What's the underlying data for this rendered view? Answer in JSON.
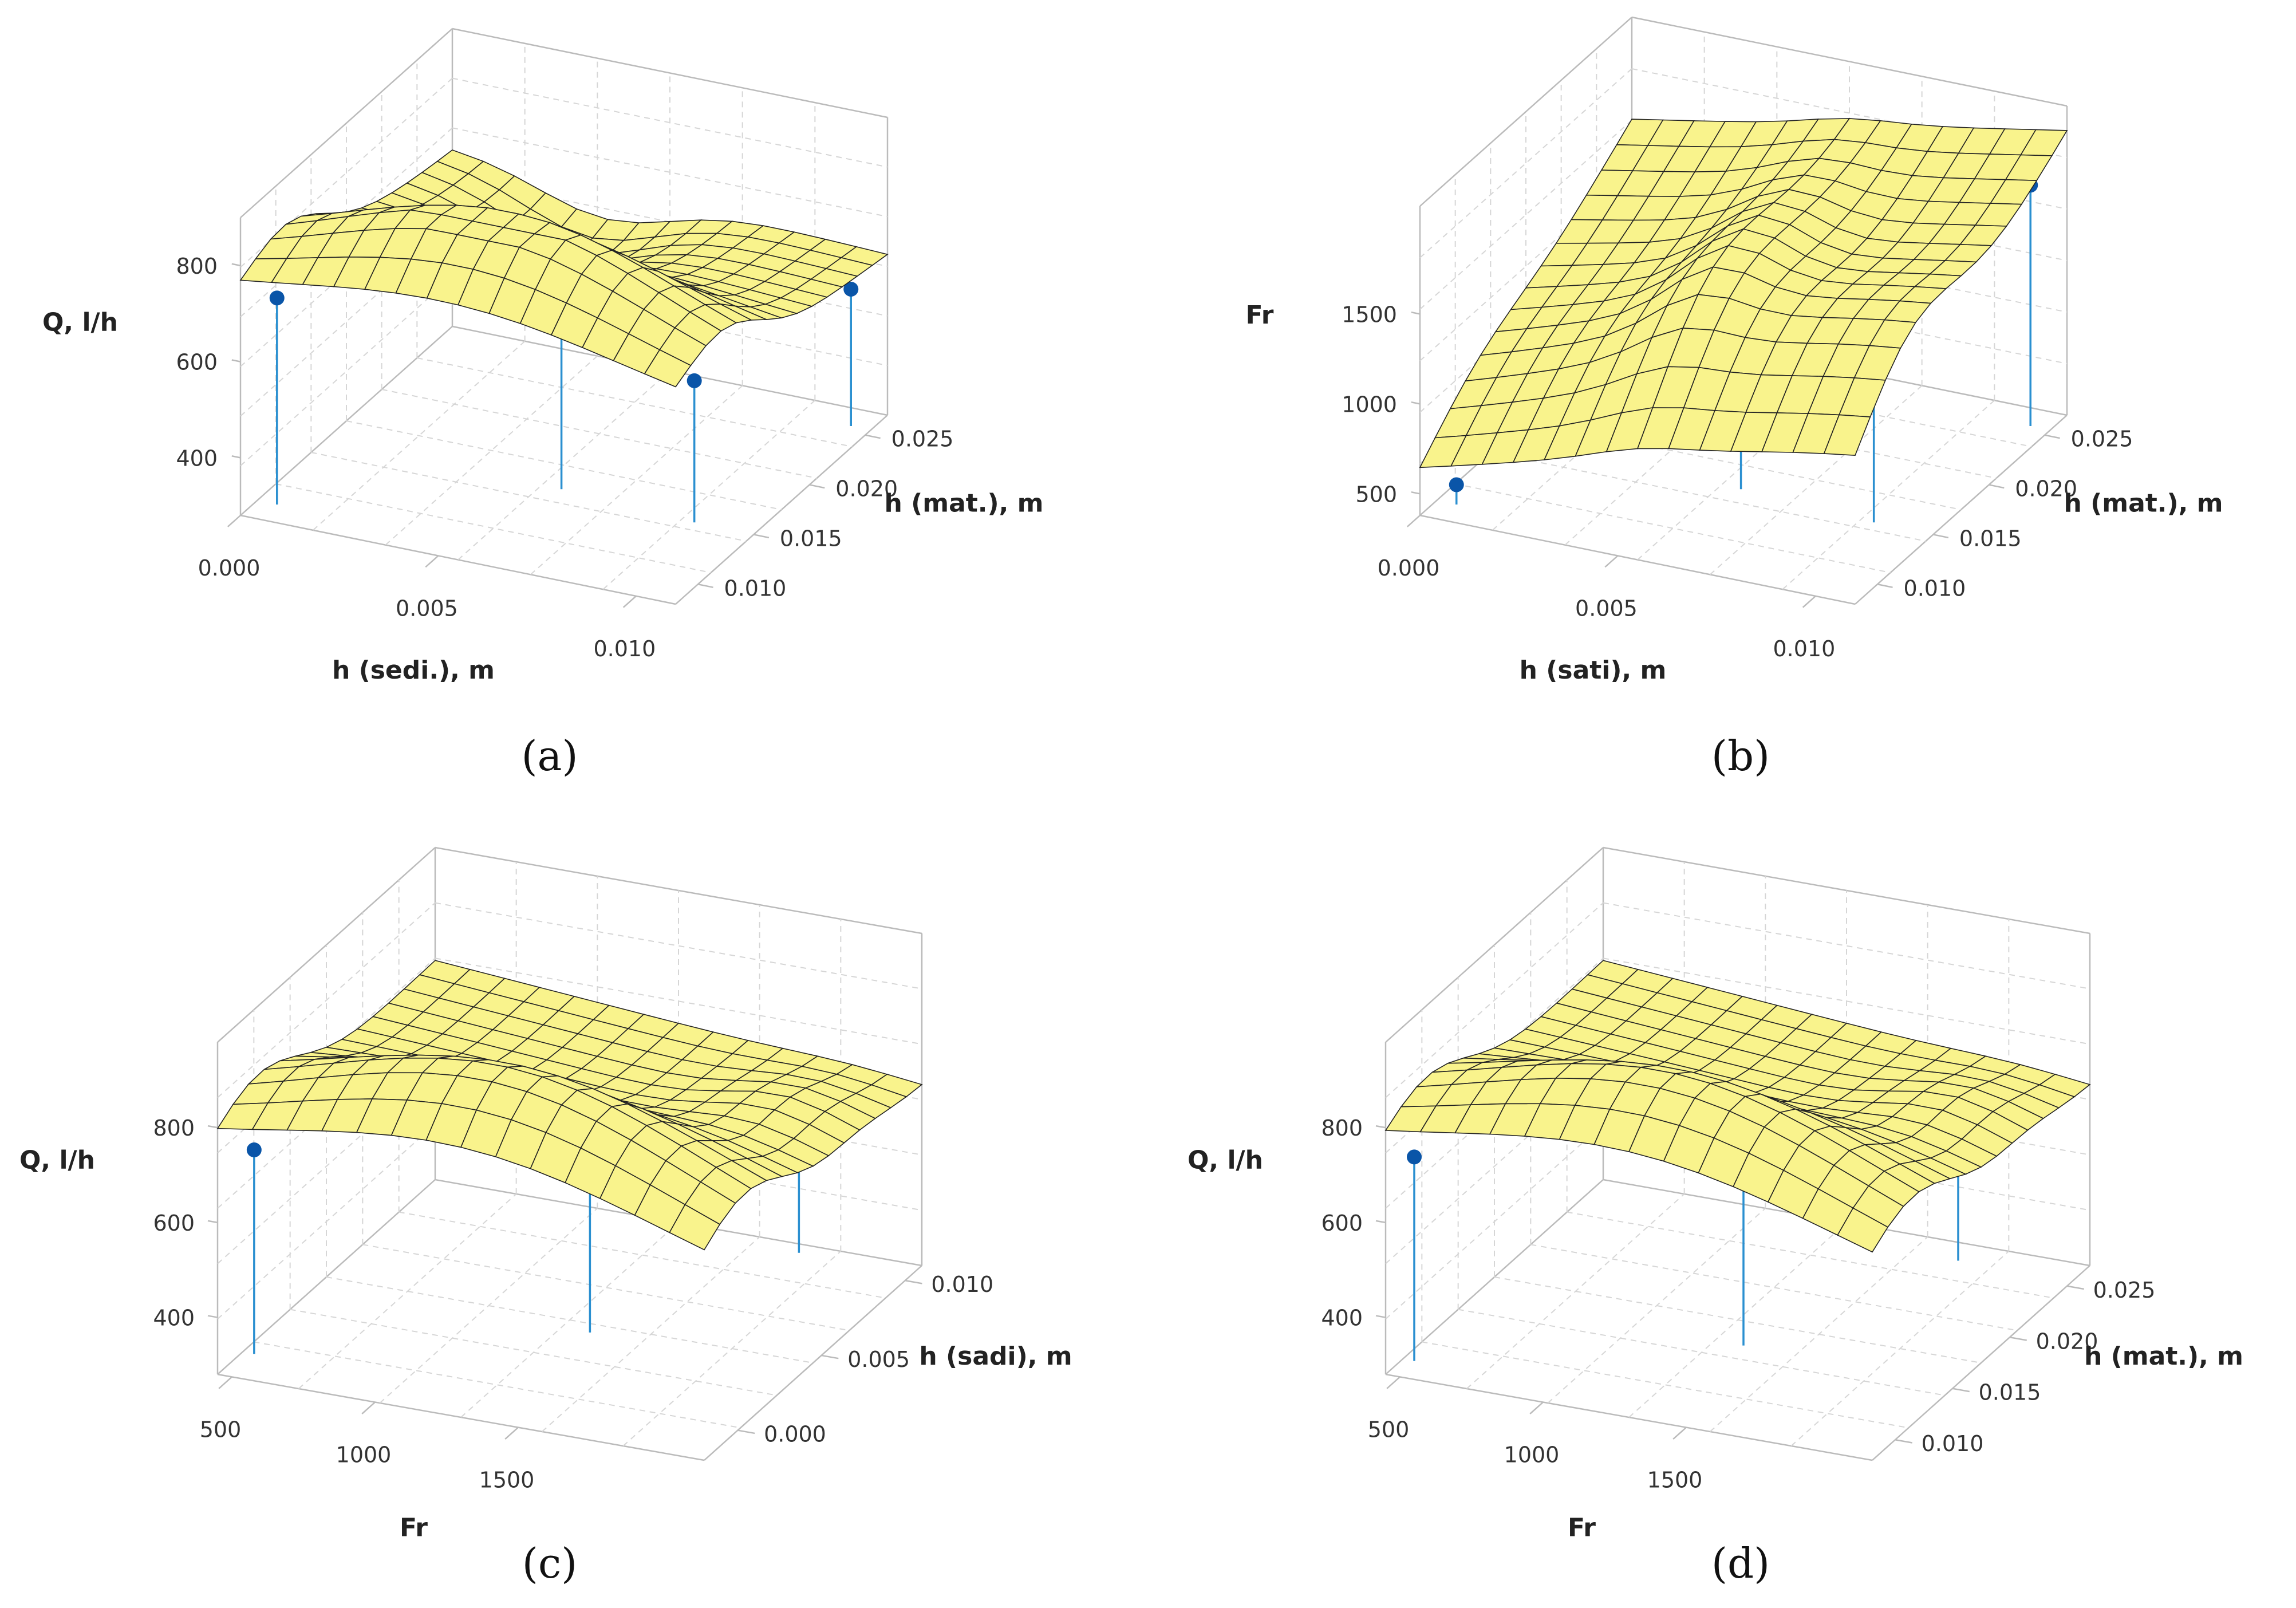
{
  "colors": {
    "surface_fill": "#f9f38c",
    "surface_line": "#222222",
    "marker": "#0a55a8",
    "drop_line": "#2a8fd0",
    "frame": "#bbbbbb",
    "grid": "#d6d6d6"
  },
  "chart_data": [
    {
      "type": "surface",
      "panel_label": "(a)",
      "panel_letter": "a",
      "xlabel": "h (sedi.), m",
      "ylabel": "h (mat.), m",
      "zlabel": "Q, l/h",
      "xticks": [
        "0.000",
        "0.005",
        "0.010"
      ],
      "yticks": [
        "0.010",
        "0.015",
        "0.020",
        "0.025"
      ],
      "zticks": [
        "400",
        "600",
        "800"
      ],
      "xlim": [
        0.0,
        0.011
      ],
      "ylim": [
        0.008,
        0.027
      ],
      "zlim": [
        280,
        900
      ],
      "markers": [
        {
          "x": 0.0005,
          "y": 0.0095,
          "z": 710
        },
        {
          "x": 0.006,
          "y": 0.0155,
          "z": 850
        },
        {
          "x": 0.0105,
          "y": 0.0255,
          "z": 565
        }
      ],
      "grid_markers": [
        {
          "x": 0.0095,
          "y": 0.015,
          "z": 575
        }
      ]
    },
    {
      "type": "surface",
      "panel_label": "(b)",
      "panel_letter": "b",
      "xlabel": "h (sati), m",
      "ylabel": "h (mat.), m",
      "zlabel": "Fr",
      "xticks": [
        "0.000",
        "0.005",
        "0.010"
      ],
      "yticks": [
        "0.010",
        "0.015",
        "0.020",
        "0.025"
      ],
      "zticks": [
        "500",
        "1000",
        "1500"
      ],
      "xlim": [
        0.0,
        0.011
      ],
      "ylim": [
        0.008,
        0.027
      ],
      "zlim": [
        380,
        2100
      ],
      "markers": [
        {
          "x": 0.0005,
          "y": 0.0095,
          "z": 490
        },
        {
          "x": 0.0095,
          "y": 0.015,
          "z": 2000
        },
        {
          "x": 0.0105,
          "y": 0.0255,
          "z": 1720
        },
        {
          "x": 0.006,
          "y": 0.0155,
          "z": 1000
        }
      ]
    },
    {
      "type": "surface",
      "panel_label": "(c)",
      "panel_letter": "c",
      "xlabel": "Fr",
      "ylabel": "h (sadi), m",
      "zlabel": "Q, l/h",
      "xticks": [
        "500",
        "1000",
        "1500"
      ],
      "yticks": [
        "0.000",
        "0.005",
        "0.010"
      ],
      "zticks": [
        "400",
        "600",
        "800"
      ],
      "xlim": [
        450,
        2150
      ],
      "ylim": [
        -0.002,
        0.011
      ],
      "zlim": [
        280,
        980
      ],
      "markers": [
        {
          "x": 490,
          "y": -0.0005,
          "z": 710
        },
        {
          "x": 1400,
          "y": 0.004,
          "z": 930
        },
        {
          "x": 1750,
          "y": 0.0105,
          "z": 600
        }
      ]
    },
    {
      "type": "surface",
      "panel_label": "(d)",
      "panel_letter": "d",
      "xlabel": "Fr",
      "ylabel": "h (mat.), m",
      "zlabel": "Q, l/h",
      "xticks": [
        "500",
        "1000",
        "1500"
      ],
      "yticks": [
        "0.010",
        "0.015",
        "0.020",
        "0.025"
      ],
      "zticks": [
        "400",
        "600",
        "800"
      ],
      "xlim": [
        450,
        2150
      ],
      "ylim": [
        0.008,
        0.027
      ],
      "zlim": [
        280,
        980
      ],
      "markers": [
        {
          "x": 490,
          "y": 0.0095,
          "z": 710
        },
        {
          "x": 1400,
          "y": 0.0155,
          "z": 930
        },
        {
          "x": 1750,
          "y": 0.0255,
          "z": 600
        }
      ]
    }
  ]
}
